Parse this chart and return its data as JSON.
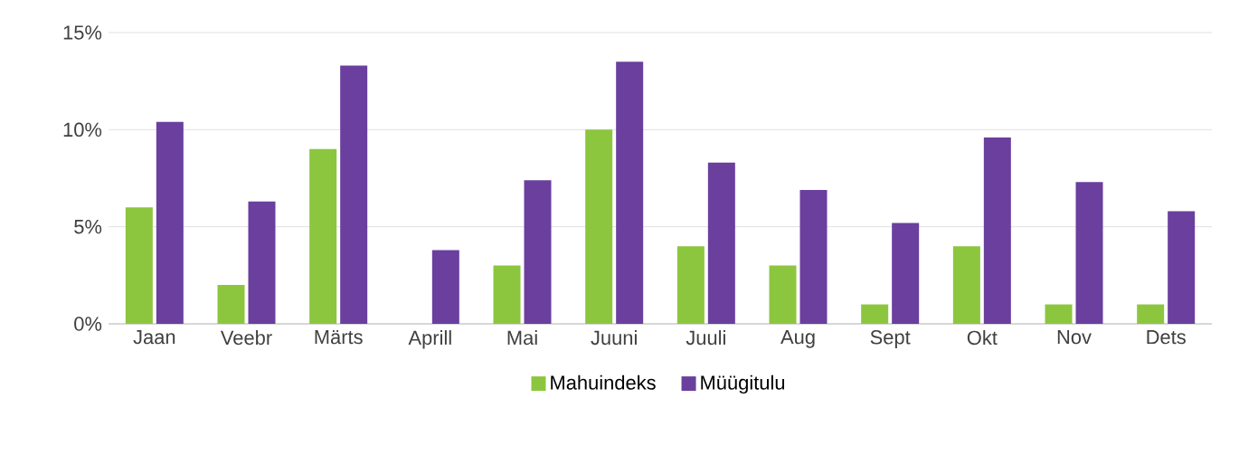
{
  "chart_data": {
    "type": "bar",
    "categories": [
      "Jaan",
      "Veebr",
      "Märts",
      "Aprill",
      "Mai",
      "Juuni",
      "Juuli",
      "Aug",
      "Sept",
      "Okt",
      "Nov",
      "Dets"
    ],
    "series": [
      {
        "name": "Mahuindeks",
        "color": "#8cc63e",
        "values": [
          6,
          2,
          9,
          0,
          3,
          10,
          4,
          3,
          1,
          4,
          1,
          1
        ]
      },
      {
        "name": "Müügitulu",
        "color": "#6a3f9e",
        "values": [
          10.4,
          6.3,
          13.3,
          3.8,
          7.4,
          13.5,
          8.3,
          6.9,
          5.2,
          9.6,
          7.3,
          5.8
        ]
      }
    ],
    "ylim": [
      0,
      15
    ],
    "yticks": [
      {
        "value": 0,
        "label": "0%"
      },
      {
        "value": 5,
        "label": "5%"
      },
      {
        "value": 10,
        "label": "10%"
      },
      {
        "value": 15,
        "label": "15%"
      }
    ],
    "grid": "y",
    "legend": "bottom"
  }
}
